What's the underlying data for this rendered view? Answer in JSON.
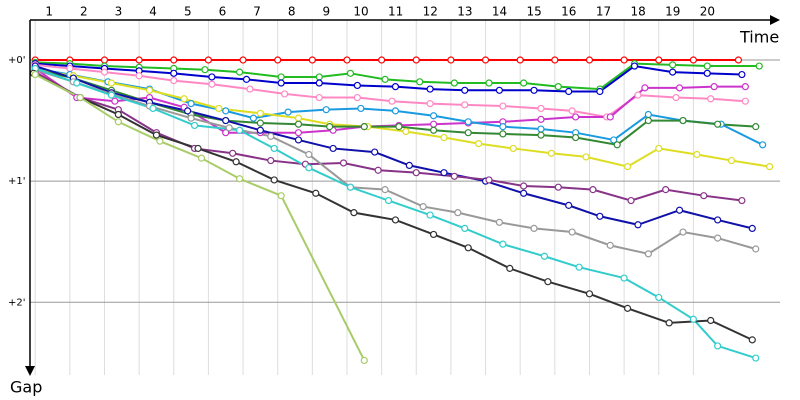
{
  "chart_data": {
    "type": "line",
    "x_label": "Time",
    "y_label": "Gap",
    "xlim": [
      0.85,
      22.5
    ],
    "ylim": [
      0,
      2.6
    ],
    "y_inverted": true,
    "xticks": [
      1,
      2,
      3,
      4,
      5,
      6,
      7,
      8,
      9,
      10,
      11,
      12,
      13,
      14,
      15,
      16,
      17,
      18,
      19,
      20
    ],
    "yticks": [
      {
        "value": 0,
        "label": "+0'"
      },
      {
        "value": 1,
        "label": "+1'"
      },
      {
        "value": 2,
        "label": "+2'"
      }
    ],
    "grid": true,
    "series": [
      {
        "color": "#ff0000",
        "x": [
          1,
          2,
          3,
          4,
          5,
          6,
          7,
          8,
          9,
          10,
          11,
          12,
          13,
          14,
          15,
          16,
          17,
          18,
          19,
          20,
          21.3
        ],
        "values": [
          0,
          0,
          0,
          0,
          0,
          0,
          0,
          0,
          0,
          0,
          0,
          0,
          0,
          0,
          0,
          0,
          0,
          0,
          0,
          0,
          0
        ]
      },
      {
        "color": "#22bb22",
        "x": [
          1,
          2,
          3,
          4,
          5,
          5.9,
          6.9,
          8.1,
          9.2,
          10.1,
          11.1,
          12.1,
          13.1,
          14.1,
          15.1,
          16.1,
          17.3,
          18.3,
          19.4,
          20.4,
          21.9
        ],
        "values": [
          0.02,
          0.03,
          0.05,
          0.06,
          0.07,
          0.08,
          0.1,
          0.14,
          0.14,
          0.11,
          0.16,
          0.18,
          0.19,
          0.19,
          0.19,
          0.22,
          0.24,
          0.03,
          0.04,
          0.05,
          0.05
        ]
      },
      {
        "color": "#0000cc",
        "x": [
          1,
          2,
          3,
          4,
          5,
          6.1,
          7.1,
          8.1,
          9.2,
          10.3,
          11.4,
          12.4,
          13.4,
          14.4,
          15.4,
          16.4,
          17.3,
          18.3,
          19.4,
          20.4,
          21.4
        ],
        "values": [
          0.03,
          0.05,
          0.07,
          0.09,
          0.11,
          0.14,
          0.16,
          0.19,
          0.19,
          0.21,
          0.22,
          0.24,
          0.25,
          0.25,
          0.25,
          0.26,
          0.26,
          0.05,
          0.1,
          0.11,
          0.12
        ]
      },
      {
        "color": "#ff88c4",
        "x": [
          1,
          2,
          3,
          4,
          5,
          6.1,
          7.2,
          8.2,
          9.2,
          10.3,
          11.3,
          12.4,
          13.4,
          14.5,
          15.6,
          16.5,
          17.5,
          18.4,
          19.5,
          20.5,
          21.5
        ],
        "values": [
          0.04,
          0.07,
          0.1,
          0.13,
          0.17,
          0.2,
          0.24,
          0.28,
          0.31,
          0.31,
          0.34,
          0.36,
          0.37,
          0.38,
          0.4,
          0.42,
          0.47,
          0.29,
          0.31,
          0.32,
          0.34
        ]
      },
      {
        "color": "#cc33cc",
        "x": [
          1,
          2.2,
          3.3,
          4.3,
          5.3,
          6.5,
          7.5,
          8.6,
          9.6,
          10.5,
          11.5,
          12.5,
          13.5,
          14.5,
          15.6,
          16.6,
          17.6,
          18.6,
          19.6,
          20.6,
          21.5
        ],
        "values": [
          0.07,
          0.31,
          0.34,
          0.31,
          0.39,
          0.6,
          0.6,
          0.6,
          0.58,
          0.55,
          0.54,
          0.53,
          0.52,
          0.51,
          0.49,
          0.47,
          0.47,
          0.23,
          0.23,
          0.22,
          0.22
        ]
      },
      {
        "color": "#1a9ae0",
        "x": [
          1,
          2,
          3.1,
          4.3,
          5.5,
          6.5,
          7.3,
          8.3,
          9.4,
          10.4,
          11.4,
          12.5,
          13.5,
          14.5,
          15.6,
          16.6,
          17.7,
          18.7,
          19.7,
          20.8,
          22
        ],
        "values": [
          0.07,
          0.12,
          0.18,
          0.24,
          0.36,
          0.42,
          0.48,
          0.43,
          0.41,
          0.4,
          0.42,
          0.46,
          0.51,
          0.55,
          0.57,
          0.6,
          0.66,
          0.45,
          0.5,
          0.53,
          0.7
        ]
      },
      {
        "color": "#dddd22",
        "x": [
          1,
          2.1,
          3.2,
          4.3,
          5.3,
          6.3,
          7.5,
          8.6,
          9.5,
          10.6,
          11.7,
          12.8,
          13.8,
          14.8,
          15.9,
          16.9,
          18.1,
          19,
          20.1,
          21.1,
          22.2
        ],
        "values": [
          0.08,
          0.13,
          0.19,
          0.25,
          0.32,
          0.4,
          0.44,
          0.48,
          0.53,
          0.55,
          0.59,
          0.64,
          0.69,
          0.73,
          0.77,
          0.8,
          0.88,
          0.73,
          0.78,
          0.83,
          0.88
        ]
      },
      {
        "color": "#338833",
        "x": [
          1,
          2.1,
          3.2,
          4.3,
          5.5,
          6.5,
          7.5,
          8.6,
          9.5,
          10.5,
          11.5,
          12.5,
          13.5,
          14.5,
          15.6,
          16.6,
          17.8,
          18.7,
          19.7,
          20.7,
          21.8
        ],
        "values": [
          0.08,
          0.15,
          0.25,
          0.35,
          0.45,
          0.5,
          0.52,
          0.53,
          0.55,
          0.55,
          0.55,
          0.58,
          0.6,
          0.61,
          0.62,
          0.64,
          0.7,
          0.5,
          0.5,
          0.53,
          0.55
        ]
      },
      {
        "color": "#1010aa",
        "x": [
          1,
          2.1,
          3.2,
          4.3,
          5.4,
          6.5,
          7.5,
          8.6,
          9.6,
          10.8,
          11.8,
          12.8,
          14,
          15.1,
          16.4,
          17.3,
          18.4,
          19.6,
          20.7,
          21.7
        ],
        "values": [
          0.05,
          0.15,
          0.27,
          0.35,
          0.42,
          0.5,
          0.58,
          0.66,
          0.73,
          0.76,
          0.87,
          0.93,
          1.0,
          1.1,
          1.2,
          1.29,
          1.36,
          1.24,
          1.32,
          1.39
        ]
      },
      {
        "color": "#883388",
        "x": [
          1,
          2.3,
          3.4,
          4.5,
          5.6,
          6.7,
          7.8,
          8.8,
          9.9,
          10.9,
          12,
          13.1,
          14.1,
          15.1,
          16.1,
          17.1,
          18.2,
          19.2,
          20.3,
          21.4
        ],
        "values": [
          0.1,
          0.31,
          0.41,
          0.6,
          0.73,
          0.77,
          0.83,
          0.86,
          0.85,
          0.91,
          0.93,
          0.96,
          0.99,
          1.04,
          1.05,
          1.07,
          1.16,
          1.07,
          1.12,
          1.16
        ]
      },
      {
        "color": "#999999",
        "x": [
          1,
          2.1,
          3.2,
          4.3,
          5.5,
          6.6,
          7.8,
          8.9,
          10.1,
          11.1,
          12.2,
          13.2,
          14.4,
          15.4,
          16.5,
          17.6,
          18.7,
          19.7,
          20.7,
          21.8
        ],
        "values": [
          0.08,
          0.18,
          0.28,
          0.38,
          0.48,
          0.56,
          0.63,
          0.78,
          1.05,
          1.07,
          1.21,
          1.26,
          1.34,
          1.39,
          1.42,
          1.53,
          1.6,
          1.42,
          1.47,
          1.56
        ]
      },
      {
        "color": "#33cccc",
        "x": [
          1,
          2.2,
          3.2,
          4.4,
          5.6,
          6.9,
          7.9,
          8.9,
          10.1,
          11.2,
          12.4,
          13.4,
          14.5,
          15.7,
          16.7,
          18,
          19,
          20,
          20.7,
          21.8
        ],
        "values": [
          0.07,
          0.19,
          0.29,
          0.4,
          0.54,
          0.58,
          0.73,
          0.89,
          1.05,
          1.16,
          1.28,
          1.39,
          1.52,
          1.62,
          1.71,
          1.8,
          1.96,
          2.14,
          2.36,
          2.46
        ]
      },
      {
        "color": "#333333",
        "x": [
          0.95,
          2.3,
          3.4,
          4.5,
          5.7,
          6.8,
          7.9,
          9.1,
          10.2,
          11.4,
          12.5,
          13.5,
          14.7,
          15.8,
          17,
          18.1,
          19.3,
          20.5,
          21.7
        ],
        "values": [
          0.11,
          0.31,
          0.45,
          0.62,
          0.73,
          0.84,
          0.99,
          1.1,
          1.26,
          1.32,
          1.44,
          1.55,
          1.72,
          1.83,
          1.93,
          2.05,
          2.17,
          2.15,
          2.31
        ]
      },
      {
        "color": "#a8cc66",
        "x": [
          1,
          2.3,
          3.4,
          4.6,
          5.8,
          6.9,
          8.1,
          10.5
        ],
        "values": [
          0.12,
          0.31,
          0.51,
          0.67,
          0.81,
          0.98,
          1.12,
          2.48
        ]
      }
    ]
  }
}
